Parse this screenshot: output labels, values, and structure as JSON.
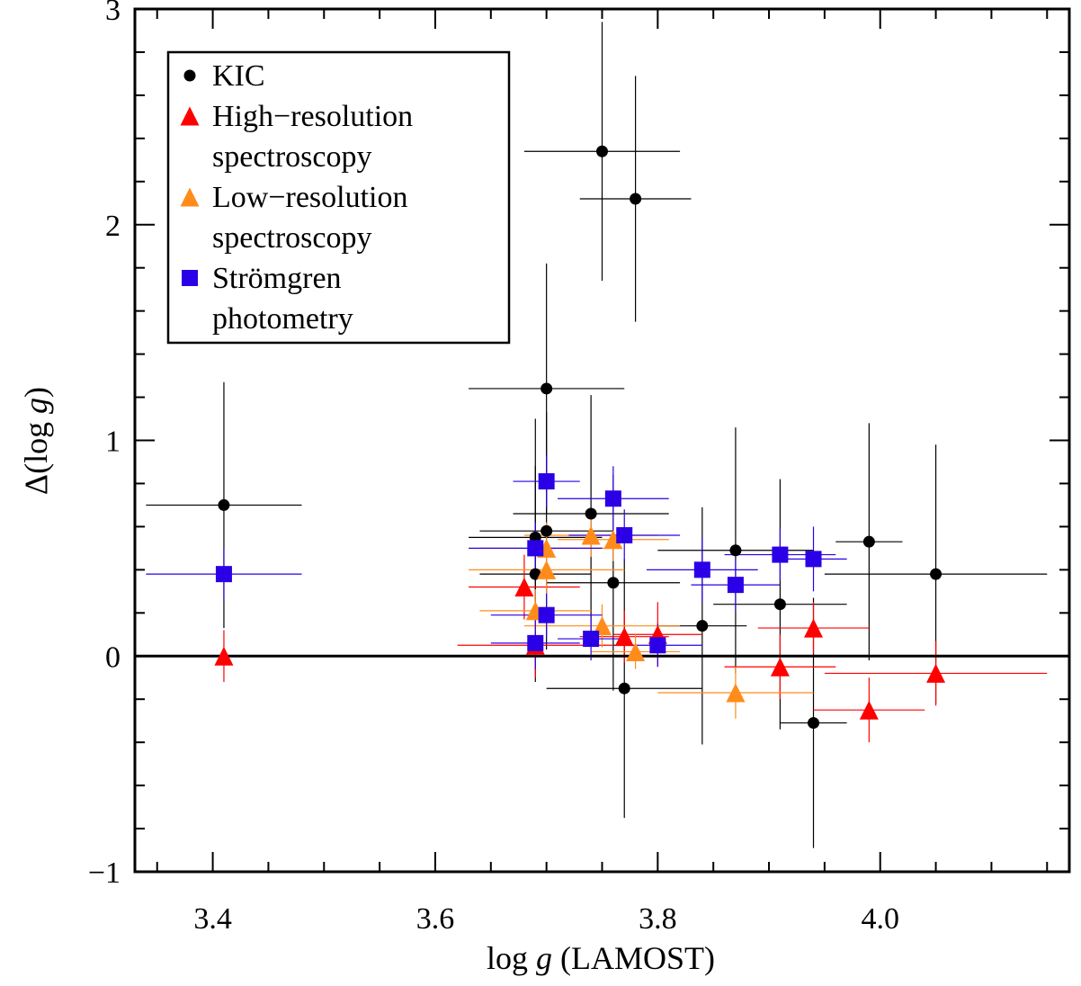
{
  "chart_data": {
    "type": "scatter",
    "xlabel_parts": [
      "log ",
      "g",
      " (LAMOST)"
    ],
    "ylabel_parts": [
      "Δ(log ",
      "g",
      ")"
    ],
    "xlim": [
      3.33,
      4.17
    ],
    "ylim": [
      -1.0,
      3.0
    ],
    "x_major_ticks": [
      3.4,
      3.6,
      3.8,
      4.0
    ],
    "x_tick_labels": [
      "3.4",
      "3.6",
      "3.8",
      "4.0"
    ],
    "y_major_ticks": [
      -1,
      0,
      1,
      2,
      3
    ],
    "y_tick_labels": [
      "−1",
      "0",
      "1",
      "2",
      "3"
    ],
    "reference_line_y": 0,
    "legend_location": "top-left",
    "colors": {
      "KIC": "#000000",
      "High-resolution spectroscopy": "#ff0000",
      "Low-resolution spectroscopy": "#ff8c1a",
      "Strömgren photometry": "#2b00e6"
    },
    "series": [
      {
        "name": "KIC",
        "legend_lines": [
          "KIC"
        ],
        "marker": "circle",
        "points": [
          {
            "x": 3.41,
            "y": 0.7,
            "xerr": 0.07,
            "yerr": 0.57
          },
          {
            "x": 3.75,
            "y": 2.34,
            "xerr": 0.07,
            "yerr": 0.6
          },
          {
            "x": 3.78,
            "y": 2.12,
            "xerr": 0.05,
            "yerr": 0.57
          },
          {
            "x": 3.7,
            "y": 1.24,
            "xerr": 0.07,
            "yerr": 0.58
          },
          {
            "x": 3.74,
            "y": 0.66,
            "xerr": 0.07,
            "yerr": 0.55
          },
          {
            "x": 3.7,
            "y": 0.58,
            "xerr": 0.06,
            "yerr": 0.55
          },
          {
            "x": 3.69,
            "y": 0.55,
            "xerr": 0.06,
            "yerr": 0.55
          },
          {
            "x": 3.69,
            "y": 0.38,
            "xerr": 0.05,
            "yerr": 0.5
          },
          {
            "x": 3.76,
            "y": 0.34,
            "xerr": 0.06,
            "yerr": 0.5
          },
          {
            "x": 3.77,
            "y": -0.15,
            "xerr": 0.07,
            "yerr": 0.6
          },
          {
            "x": 3.84,
            "y": 0.14,
            "xerr": 0.04,
            "yerr": 0.55
          },
          {
            "x": 3.87,
            "y": 0.49,
            "xerr": 0.07,
            "yerr": 0.57
          },
          {
            "x": 3.91,
            "y": 0.24,
            "xerr": 0.06,
            "yerr": 0.58
          },
          {
            "x": 3.94,
            "y": -0.31,
            "xerr": 0.03,
            "yerr": 0.58
          },
          {
            "x": 3.99,
            "y": 0.53,
            "xerr": 0.03,
            "yerr": 0.55
          },
          {
            "x": 4.05,
            "y": 0.38,
            "xerr": 0.1,
            "yerr": 0.6
          }
        ]
      },
      {
        "name": "High-resolution spectroscopy",
        "legend_lines": [
          "High−resolution",
          "spectroscopy"
        ],
        "marker": "triangle",
        "points": [
          {
            "x": 3.41,
            "y": 0.0,
            "xerr": 0.07,
            "yerr": 0.12
          },
          {
            "x": 3.68,
            "y": 0.32,
            "xerr": 0.05,
            "yerr": 0.15
          },
          {
            "x": 3.69,
            "y": 0.05,
            "xerr": 0.07,
            "yerr": 0.15
          },
          {
            "x": 3.77,
            "y": 0.09,
            "xerr": 0.04,
            "yerr": 0.12
          },
          {
            "x": 3.8,
            "y": 0.1,
            "xerr": 0.04,
            "yerr": 0.15
          },
          {
            "x": 3.91,
            "y": -0.05,
            "xerr": 0.05,
            "yerr": 0.15
          },
          {
            "x": 3.94,
            "y": 0.13,
            "xerr": 0.05,
            "yerr": 0.12
          },
          {
            "x": 3.99,
            "y": -0.25,
            "xerr": 0.05,
            "yerr": 0.15
          },
          {
            "x": 4.05,
            "y": -0.08,
            "xerr": 0.1,
            "yerr": 0.15
          }
        ]
      },
      {
        "name": "Low-resolution spectroscopy",
        "legend_lines": [
          "Low−resolution",
          "spectroscopy"
        ],
        "marker": "triangle",
        "points": [
          {
            "x": 3.7,
            "y": 0.5,
            "xerr": 0.06,
            "yerr": 0.12
          },
          {
            "x": 3.7,
            "y": 0.4,
            "xerr": 0.07,
            "yerr": 0.12
          },
          {
            "x": 3.69,
            "y": 0.21,
            "xerr": 0.05,
            "yerr": 0.1
          },
          {
            "x": 3.74,
            "y": 0.56,
            "xerr": 0.06,
            "yerr": 0.1
          },
          {
            "x": 3.76,
            "y": 0.54,
            "xerr": 0.05,
            "yerr": 0.1
          },
          {
            "x": 3.75,
            "y": 0.14,
            "xerr": 0.07,
            "yerr": 0.1
          },
          {
            "x": 3.78,
            "y": 0.02,
            "xerr": 0.04,
            "yerr": 0.08
          },
          {
            "x": 3.87,
            "y": -0.17,
            "xerr": 0.07,
            "yerr": 0.12
          }
        ]
      },
      {
        "name": "Strömgren photometry",
        "legend_lines": [
          "Strömgren",
          "photometry"
        ],
        "marker": "square",
        "points": [
          {
            "x": 3.41,
            "y": 0.38,
            "xerr": 0.07,
            "yerr": 0.12
          },
          {
            "x": 3.7,
            "y": 0.81,
            "xerr": 0.03,
            "yerr": 0.12
          },
          {
            "x": 3.76,
            "y": 0.73,
            "xerr": 0.05,
            "yerr": 0.15
          },
          {
            "x": 3.77,
            "y": 0.56,
            "xerr": 0.05,
            "yerr": 0.12
          },
          {
            "x": 3.69,
            "y": 0.5,
            "xerr": 0.06,
            "yerr": 0.12
          },
          {
            "x": 3.7,
            "y": 0.19,
            "xerr": 0.05,
            "yerr": 0.1
          },
          {
            "x": 3.69,
            "y": 0.06,
            "xerr": 0.04,
            "yerr": 0.12
          },
          {
            "x": 3.74,
            "y": 0.08,
            "xerr": 0.03,
            "yerr": 0.1
          },
          {
            "x": 3.8,
            "y": 0.05,
            "xerr": 0.04,
            "yerr": 0.1
          },
          {
            "x": 3.84,
            "y": 0.4,
            "xerr": 0.05,
            "yerr": 0.15
          },
          {
            "x": 3.87,
            "y": 0.33,
            "xerr": 0.04,
            "yerr": 0.12
          },
          {
            "x": 3.91,
            "y": 0.47,
            "xerr": 0.05,
            "yerr": 0.12
          },
          {
            "x": 3.94,
            "y": 0.45,
            "xerr": 0.03,
            "yerr": 0.15
          }
        ]
      }
    ]
  }
}
